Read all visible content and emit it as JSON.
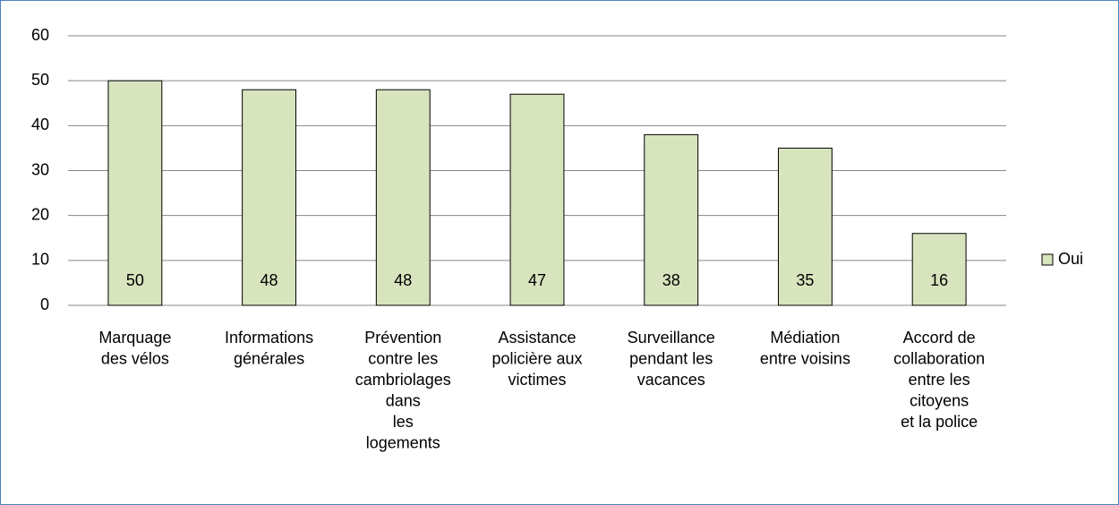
{
  "chart_data": {
    "type": "bar",
    "categories": [
      "Marquage\ndes vélos",
      "Informations\ngénérales",
      "Prévention\ncontre les\ncambriolages\ndans\nles\nlogements",
      "Assistance\npolicière aux\nvictimes",
      "Surveillance\npendant les\nvacances",
      "Médiation\nentre voisins",
      "Accord de\ncollaboration\nentre les\ncitoyens\net la police"
    ],
    "series": [
      {
        "name": "Oui",
        "color": "#d7e4bd",
        "values": [
          50,
          48,
          48,
          47,
          38,
          35,
          16
        ]
      }
    ],
    "ylim": [
      0,
      60
    ],
    "yticks": [
      0,
      10,
      20,
      30,
      40,
      50,
      60
    ],
    "grid": true,
    "legend": "right"
  }
}
